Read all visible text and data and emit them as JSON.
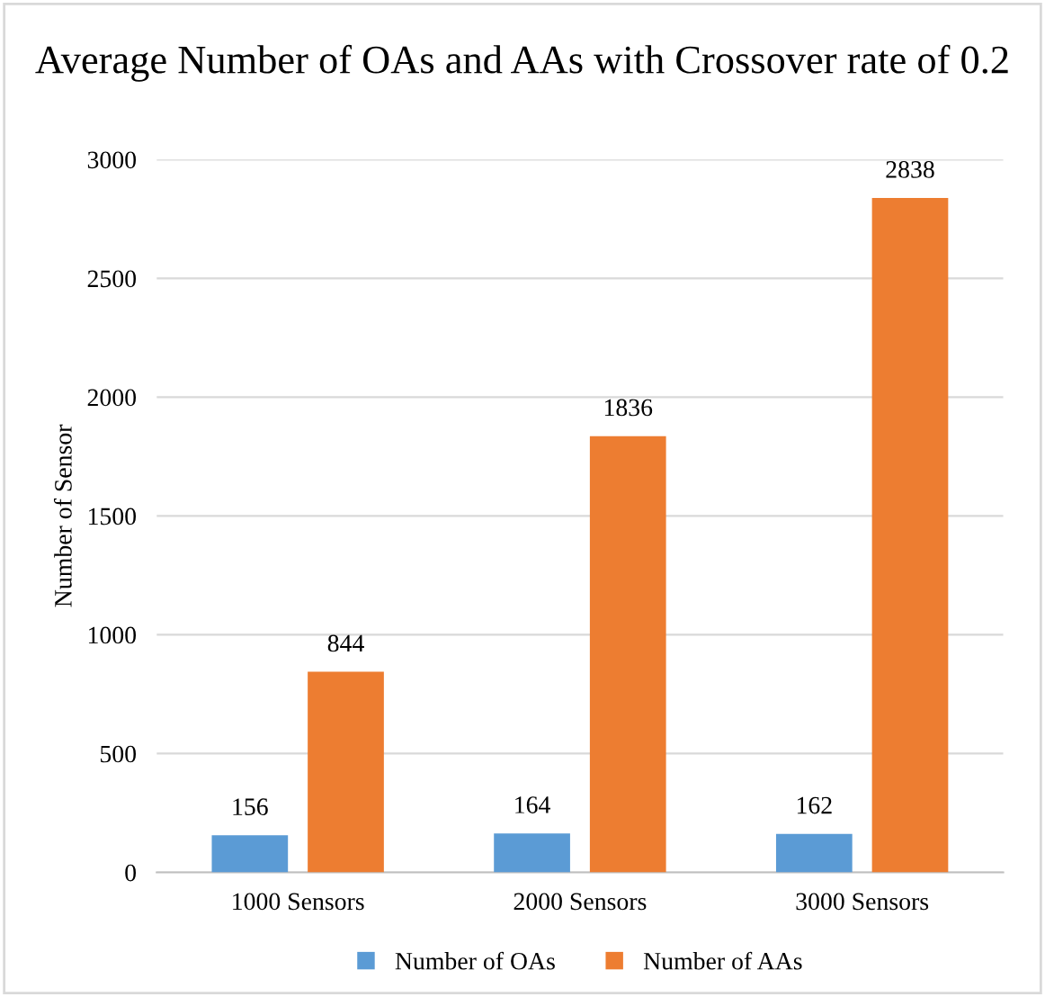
{
  "chart_data": {
    "type": "bar",
    "title": "Average Number of OAs and AAs with Crossover rate of 0.2",
    "ylabel": "Number of Sensor",
    "categories": [
      "1000 Sensors",
      "2000 Sensors",
      "3000 Sensors"
    ],
    "series": [
      {
        "name": "Number of OAs",
        "color": "#5b9bd5",
        "values": [
          156,
          164,
          162
        ]
      },
      {
        "name": "Number of AAs",
        "color": "#ed7d31",
        "values": [
          844,
          1836,
          2838
        ]
      }
    ],
    "ylim": [
      0,
      3000
    ],
    "yticks": [
      0,
      500,
      1000,
      1500,
      2000,
      2500,
      3000
    ],
    "grid": "y",
    "legend": "bottom",
    "data_labels": true
  }
}
